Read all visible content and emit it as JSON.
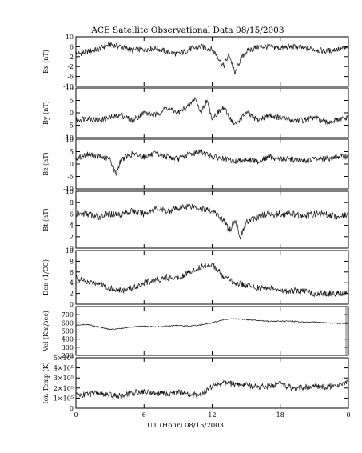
{
  "chart_data": {
    "type": "line",
    "title": "ACE Satellite Observational Data   08/15/2003",
    "xlabel": "UT (Hour)  08/15/2003",
    "x_ticks": [
      "0",
      "6",
      "12",
      "18",
      "0"
    ],
    "xlim": [
      0,
      24
    ],
    "panels": [
      {
        "name": "bx",
        "ylabel": "Bx (nT)",
        "ylim": [
          -10,
          10
        ],
        "yticks": [
          {
            "v": 10,
            "t": "10"
          },
          {
            "v": 6,
            "t": "6"
          },
          {
            "v": 2,
            "t": "2"
          },
          {
            "v": -2,
            "t": "-2"
          },
          {
            "v": -6,
            "t": "-6"
          },
          {
            "v": -10,
            "t": "-10"
          }
        ],
        "x": [
          0,
          1,
          2,
          3,
          4,
          5,
          6,
          7,
          8,
          9,
          10,
          11,
          12,
          12.5,
          13,
          13.5,
          14,
          14.5,
          15,
          16,
          17,
          18,
          19,
          20,
          21,
          22,
          23,
          24
        ],
        "y": [
          3,
          4,
          5,
          7,
          6,
          4.5,
          5,
          5.5,
          4,
          3,
          5,
          6,
          5,
          2,
          -2,
          3,
          -5,
          1,
          4,
          6,
          6,
          5.5,
          6,
          5.5,
          5,
          4,
          5,
          5.5
        ]
      },
      {
        "name": "by",
        "ylabel": "By (nT)",
        "ylim": [
          -10,
          10
        ],
        "yticks": [
          {
            "v": 10,
            "t": "10"
          },
          {
            "v": 5,
            "t": "5"
          },
          {
            "v": 0,
            "t": "0"
          },
          {
            "v": -5,
            "t": "-5"
          },
          {
            "v": -10,
            "t": "-10"
          }
        ],
        "x": [
          0,
          1,
          2,
          3,
          4,
          5,
          6,
          7,
          8,
          9,
          10,
          10.5,
          11,
          11.5,
          12,
          13,
          14,
          15,
          16,
          17,
          18,
          19,
          20,
          21,
          22,
          23,
          24
        ],
        "y": [
          -3,
          -2,
          -3,
          -2,
          -1,
          -3,
          0,
          -1,
          2,
          0,
          3,
          6,
          0,
          5,
          -2,
          2,
          -5,
          0,
          -3,
          -1,
          -2,
          -3,
          -3,
          -2,
          -4,
          -3,
          -2
        ]
      },
      {
        "name": "bz",
        "ylabel": "Bz (nT)",
        "ylim": [
          -10,
          10
        ],
        "yticks": [
          {
            "v": 10,
            "t": "10"
          },
          {
            "v": 5,
            "t": "5"
          },
          {
            "v": 0,
            "t": "0"
          },
          {
            "v": -5,
            "t": "-5"
          },
          {
            "v": -10,
            "t": "-10"
          }
        ],
        "x": [
          0,
          1,
          2,
          3,
          3.5,
          4,
          5,
          6,
          7,
          8,
          9,
          10,
          11,
          12,
          13,
          14,
          15,
          16,
          17,
          18,
          19,
          20,
          21,
          22,
          23,
          24
        ],
        "y": [
          2,
          4,
          3,
          2,
          -4,
          2,
          4,
          3,
          4,
          3,
          2,
          4,
          5,
          3,
          2,
          1,
          2,
          1,
          3,
          2,
          2,
          1,
          2,
          2,
          3,
          3
        ]
      },
      {
        "name": "bt",
        "ylabel": "Bt (nT)",
        "ylim": [
          0,
          10
        ],
        "yticks": [
          {
            "v": 10,
            "t": "10"
          },
          {
            "v": 8,
            "t": "8"
          },
          {
            "v": 6,
            "t": "6"
          },
          {
            "v": 4,
            "t": "4"
          },
          {
            "v": 2,
            "t": "2"
          },
          {
            "v": 0,
            "t": "0"
          }
        ],
        "x": [
          0,
          1,
          2,
          3,
          4,
          5,
          6,
          7,
          8,
          9,
          10,
          11,
          12,
          13,
          13.5,
          14,
          14.5,
          15,
          16,
          17,
          18,
          19,
          20,
          21,
          22,
          23,
          24
        ],
        "y": [
          6,
          6,
          5.5,
          6,
          6,
          6.5,
          6,
          7,
          6.5,
          7,
          7.5,
          7,
          6.5,
          5,
          3,
          5,
          2,
          4.5,
          5.5,
          6,
          6,
          6,
          5.5,
          6,
          6,
          5.5,
          6
        ]
      },
      {
        "name": "den",
        "ylabel": "Den (1/CC)",
        "ylim": [
          0,
          10
        ],
        "yticks": [
          {
            "v": 10,
            "t": "10"
          },
          {
            "v": 8,
            "t": "8"
          },
          {
            "v": 6,
            "t": "6"
          },
          {
            "v": 4,
            "t": "4"
          },
          {
            "v": 2,
            "t": "2"
          },
          {
            "v": 0,
            "t": "0"
          }
        ],
        "x": [
          0,
          1,
          2,
          3,
          4,
          5,
          6,
          7,
          8,
          9,
          10,
          11,
          12,
          13,
          14,
          15,
          16,
          17,
          18,
          19,
          20,
          21,
          22,
          23,
          24
        ],
        "y": [
          5,
          4,
          4,
          3,
          2.5,
          3,
          4,
          4.5,
          5,
          5,
          6,
          7,
          7.5,
          5,
          4,
          3.5,
          3,
          3,
          2.5,
          2.5,
          2.5,
          2,
          2,
          2,
          2
        ]
      },
      {
        "name": "vel",
        "ylabel": "Vel (Km/sec)",
        "ylim": [
          200,
          800
        ],
        "yticks": [
          {
            "v": 700,
            "t": "700"
          },
          {
            "v": 600,
            "t": "600"
          },
          {
            "v": 500,
            "t": "500"
          },
          {
            "v": 400,
            "t": "400"
          },
          {
            "v": 300,
            "t": "300"
          },
          {
            "v": 200,
            "t": "200"
          }
        ],
        "x": [
          0,
          1,
          2,
          3,
          4,
          5,
          6,
          7,
          8,
          9,
          10,
          11,
          12,
          13,
          14,
          15,
          16,
          17,
          18,
          19,
          20,
          21,
          22,
          23,
          24
        ],
        "y": [
          570,
          580,
          550,
          520,
          530,
          550,
          560,
          550,
          560,
          570,
          560,
          575,
          600,
          640,
          650,
          640,
          630,
          620,
          620,
          620,
          610,
          610,
          600,
          595,
          590
        ]
      },
      {
        "name": "temp",
        "ylabel": "Ion Temp (K)",
        "ylim": [
          0,
          500000
        ],
        "yticks": [
          {
            "v": 500000,
            "t": "5×10⁵"
          },
          {
            "v": 400000,
            "t": "4×10⁵"
          },
          {
            "v": 300000,
            "t": "3×10⁵"
          },
          {
            "v": 200000,
            "t": "2×10⁵"
          },
          {
            "v": 100000,
            "t": "1×10⁵"
          },
          {
            "v": 0,
            "t": "0"
          }
        ],
        "x": [
          0,
          1,
          2,
          3,
          4,
          5,
          6,
          7,
          8,
          9,
          10,
          11,
          12,
          13,
          14,
          15,
          16,
          17,
          18,
          19,
          20,
          21,
          22,
          23,
          24
        ],
        "y": [
          130000,
          140000,
          150000,
          130000,
          120000,
          150000,
          170000,
          150000,
          140000,
          160000,
          130000,
          140000,
          220000,
          250000,
          240000,
          230000,
          210000,
          220000,
          240000,
          200000,
          200000,
          220000,
          210000,
          230000,
          250000
        ]
      }
    ]
  }
}
